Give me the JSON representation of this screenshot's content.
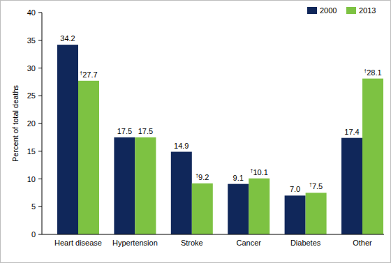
{
  "chart_data": {
    "type": "bar",
    "ylabel": "Percent of total deaths",
    "categories": [
      "Heart disease",
      "Hypertension",
      "Stroke",
      "Cancer",
      "Diabetes",
      "Other"
    ],
    "series": [
      {
        "name": "2000",
        "color": "#10275a",
        "values": [
          34.2,
          17.5,
          14.9,
          9.1,
          7.0,
          17.4
        ],
        "value_labels": [
          "34.2",
          "17.5",
          "14.9",
          "9.1",
          "7.0",
          "17.4"
        ]
      },
      {
        "name": "2013",
        "color": "#7dc242",
        "values": [
          27.7,
          17.5,
          9.2,
          10.1,
          7.5,
          28.1
        ],
        "value_labels": [
          "†27.7",
          "17.5",
          "†9.2",
          "†10.1",
          "†7.5",
          "†28.1"
        ]
      }
    ],
    "ylim": [
      0,
      40
    ],
    "yticks": [
      0,
      5,
      10,
      15,
      20,
      25,
      30,
      35,
      40
    ],
    "grid": false,
    "legend": "top-right",
    "data_labels": true
  }
}
